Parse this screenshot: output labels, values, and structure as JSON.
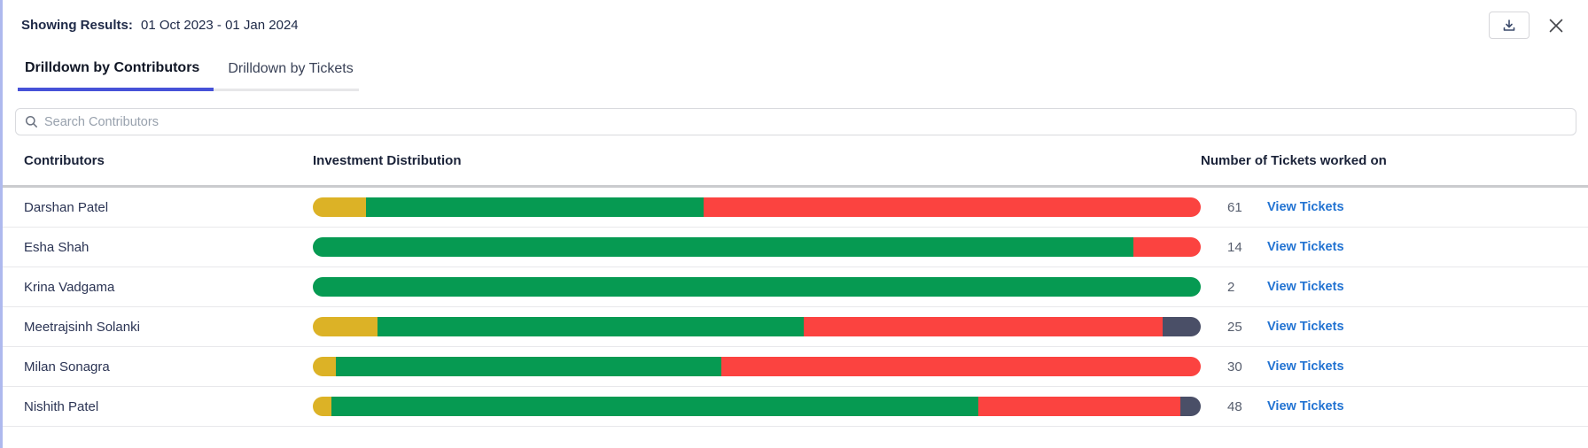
{
  "header": {
    "results_label": "Showing Results:",
    "results_range": "01 Oct 2023 - 01 Jan 2024"
  },
  "toolbar": {
    "download_icon": "download-icon",
    "close_icon": "close-icon"
  },
  "tabs": [
    {
      "label": "Drilldown by Contributors",
      "active": true
    },
    {
      "label": "Drilldown by Tickets",
      "active": false
    }
  ],
  "search": {
    "placeholder": "Search Contributors",
    "icon": "search-icon"
  },
  "table": {
    "columns": [
      "Contributors",
      "Investment Distribution",
      "Number of Tickets worked on"
    ],
    "view_link_label": "View Tickets",
    "rows": [
      {
        "name": "Darshan Patel",
        "tickets": "61",
        "segments": [
          {
            "status": "amber",
            "pct": 6.0
          },
          {
            "status": "green",
            "pct": 38.0
          },
          {
            "status": "red",
            "pct": 56.0
          }
        ]
      },
      {
        "name": "Esha Shah",
        "tickets": "14",
        "segments": [
          {
            "status": "green",
            "pct": 92.4
          },
          {
            "status": "red",
            "pct": 7.6
          }
        ]
      },
      {
        "name": "Krina Vadgama",
        "tickets": "2",
        "segments": [
          {
            "status": "green",
            "pct": 100
          }
        ]
      },
      {
        "name": "Meetrajsinh Solanki",
        "tickets": "25",
        "segments": [
          {
            "status": "amber",
            "pct": 7.3
          },
          {
            "status": "green",
            "pct": 48.0
          },
          {
            "status": "red",
            "pct": 40.4
          },
          {
            "status": "slate",
            "pct": 4.3
          }
        ]
      },
      {
        "name": "Milan Sonagra",
        "tickets": "30",
        "segments": [
          {
            "status": "amber",
            "pct": 2.6
          },
          {
            "status": "green",
            "pct": 43.4
          },
          {
            "status": "red",
            "pct": 54.0
          }
        ]
      },
      {
        "name": "Nishith Patel",
        "tickets": "48",
        "segments": [
          {
            "status": "amber",
            "pct": 2.1
          },
          {
            "status": "green",
            "pct": 72.9
          },
          {
            "status": "red",
            "pct": 22.7
          },
          {
            "status": "slate",
            "pct": 2.3
          }
        ]
      }
    ]
  },
  "colors": {
    "amber": "#dcb226",
    "green": "#069a52",
    "red": "#fb4340",
    "slate": "#4a4f67",
    "accent": "#4652d8",
    "link": "#2273d2"
  }
}
